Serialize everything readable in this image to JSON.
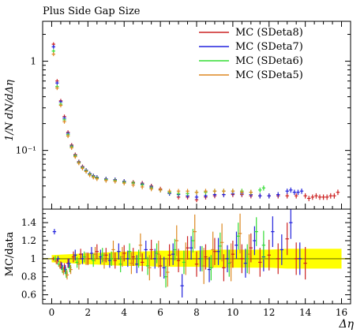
{
  "chart_data": [
    {
      "type": "line",
      "title": "Plus Side Gap Size",
      "xlabel": "Δη",
      "ylabel": "1/N dN/dΔη",
      "yscale": "log",
      "ylim": [
        0.022,
        2.8
      ],
      "xlim": [
        -0.5,
        16.5
      ],
      "y_ticks": [
        {
          "value": 1,
          "label": "1"
        },
        {
          "value": 0.1,
          "label": "10⁻¹"
        }
      ],
      "legend_position": "top-right",
      "series": [
        {
          "name": "MC (SDeta8)",
          "color": "#cc2222",
          "x": [
            0.1,
            0.3,
            0.5,
            0.7,
            0.9,
            1.1,
            1.3,
            1.5,
            1.7,
            1.9,
            2.1,
            2.3,
            2.5,
            3.0,
            3.5,
            4.0,
            4.5,
            5.0,
            5.5,
            6.0,
            6.5,
            7.0,
            7.5,
            8.0,
            8.5,
            9.0,
            9.5,
            10.0,
            10.5,
            11.0,
            11.5,
            12.0,
            12.5,
            13.0,
            13.5,
            14.0,
            14.2,
            14.4,
            14.6,
            14.8,
            15.0,
            15.2,
            15.4,
            15.6,
            15.8
          ],
          "y": [
            1.55,
            0.6,
            0.36,
            0.24,
            0.16,
            0.115,
            0.09,
            0.075,
            0.066,
            0.06,
            0.055,
            0.052,
            0.05,
            0.048,
            0.047,
            0.045,
            0.044,
            0.043,
            0.04,
            0.037,
            0.033,
            0.03,
            0.03,
            0.028,
            0.03,
            0.031,
            0.032,
            0.032,
            0.032,
            0.031,
            0.031,
            0.031,
            0.031,
            0.031,
            0.031,
            0.031,
            0.029,
            0.03,
            0.031,
            0.03,
            0.03,
            0.03,
            0.031,
            0.031,
            0.034
          ]
        },
        {
          "name": "MC (SDeta7)",
          "color": "#2222dd",
          "x": [
            0.1,
            0.3,
            0.5,
            0.7,
            0.9,
            1.1,
            1.3,
            1.5,
            1.7,
            1.9,
            2.1,
            2.3,
            2.5,
            3.0,
            3.5,
            4.0,
            4.5,
            5.0,
            5.5,
            6.0,
            6.5,
            7.0,
            7.5,
            8.0,
            8.5,
            9.0,
            9.5,
            10.0,
            10.5,
            11.0,
            11.5,
            12.0,
            12.5,
            13.0,
            13.2,
            13.4,
            13.6,
            13.8
          ],
          "y": [
            1.45,
            0.57,
            0.35,
            0.23,
            0.155,
            0.112,
            0.088,
            0.074,
            0.065,
            0.06,
            0.055,
            0.052,
            0.05,
            0.048,
            0.047,
            0.045,
            0.043,
            0.042,
            0.039,
            0.036,
            0.033,
            0.032,
            0.031,
            0.03,
            0.031,
            0.032,
            0.032,
            0.033,
            0.033,
            0.032,
            0.031,
            0.031,
            0.032,
            0.035,
            0.036,
            0.034,
            0.034,
            0.035
          ]
        },
        {
          "name": "MC (SDeta6)",
          "color": "#33dd33",
          "x": [
            0.1,
            0.3,
            0.5,
            0.7,
            0.9,
            1.1,
            1.3,
            1.5,
            1.7,
            1.9,
            2.1,
            2.3,
            2.5,
            3.0,
            3.5,
            4.0,
            4.5,
            5.0,
            5.5,
            6.0,
            6.5,
            7.0,
            7.5,
            8.0,
            8.5,
            9.0,
            9.5,
            10.0,
            10.5,
            11.0,
            11.5,
            11.7
          ],
          "y": [
            1.3,
            0.52,
            0.33,
            0.22,
            0.15,
            0.11,
            0.087,
            0.073,
            0.064,
            0.059,
            0.054,
            0.051,
            0.049,
            0.047,
            0.046,
            0.044,
            0.043,
            0.041,
            0.038,
            0.036,
            0.034,
            0.033,
            0.033,
            0.034,
            0.034,
            0.035,
            0.035,
            0.035,
            0.035,
            0.034,
            0.036,
            0.038
          ]
        },
        {
          "name": "MC (SDeta5)",
          "color": "#dd8822",
          "x": [
            0.1,
            0.3,
            0.5,
            0.7,
            0.9,
            1.1,
            1.3,
            1.5,
            1.7,
            1.9,
            2.1,
            2.3,
            2.5,
            3.0,
            3.5,
            4.0,
            4.5,
            5.0,
            5.5,
            6.0,
            6.5,
            7.0,
            7.5,
            8.0,
            8.5,
            9.0,
            9.5,
            10.0,
            10.5,
            11.0
          ],
          "y": [
            1.2,
            0.5,
            0.32,
            0.21,
            0.145,
            0.107,
            0.085,
            0.072,
            0.063,
            0.058,
            0.053,
            0.05,
            0.048,
            0.046,
            0.045,
            0.043,
            0.041,
            0.039,
            0.037,
            0.036,
            0.035,
            0.035,
            0.035,
            0.034,
            0.035,
            0.035,
            0.035,
            0.035,
            0.034,
            0.034
          ]
        }
      ]
    },
    {
      "type": "scatter",
      "ylabel": "MC/data",
      "xlabel": "Δη",
      "xlim": [
        -0.5,
        16.5
      ],
      "ylim": [
        0.5,
        1.55
      ],
      "x_ticks": [
        {
          "value": 0,
          "label": "0"
        },
        {
          "value": 2,
          "label": "2"
        },
        {
          "value": 4,
          "label": "4"
        },
        {
          "value": 6,
          "label": "6"
        },
        {
          "value": 8,
          "label": "8"
        },
        {
          "value": 10,
          "label": "10"
        },
        {
          "value": 12,
          "label": "12"
        },
        {
          "value": 14,
          "label": "14"
        },
        {
          "value": 16,
          "label": "16"
        }
      ],
      "y_ticks": [
        {
          "value": 0.6,
          "label": "0.6"
        },
        {
          "value": 0.8,
          "label": "0.8"
        },
        {
          "value": 1,
          "label": "1"
        },
        {
          "value": 1.2,
          "label": "1.2"
        },
        {
          "value": 1.4,
          "label": "1.4"
        }
      ],
      "reference_line": 1,
      "band_color": "#ffff00",
      "line_color": "#999900",
      "band": {
        "x": [
          0,
          1,
          2,
          3,
          4,
          5,
          6,
          7,
          8,
          9,
          10,
          11,
          12,
          13,
          14,
          15,
          16
        ],
        "lo": [
          0.96,
          0.95,
          0.94,
          0.93,
          0.92,
          0.92,
          0.91,
          0.91,
          0.91,
          0.9,
          0.9,
          0.9,
          0.9,
          0.89,
          0.89,
          0.89,
          0.89
        ],
        "hi": [
          1.04,
          1.05,
          1.06,
          1.07,
          1.08,
          1.08,
          1.09,
          1.09,
          1.09,
          1.1,
          1.1,
          1.1,
          1.1,
          1.11,
          1.11,
          1.11,
          1.11
        ]
      },
      "series": [
        {
          "name": "MC (SDeta8)",
          "color": "#cc2222",
          "x": [
            0.1,
            0.3,
            0.5,
            0.7,
            0.9,
            1.2,
            1.6,
            2.0,
            2.5,
            3.0,
            3.5,
            4.0,
            4.5,
            5.0,
            5.5,
            6.0,
            6.5,
            7.0,
            7.5,
            8.0,
            8.5,
            9.0,
            9.5,
            10.0,
            10.5,
            11.0,
            11.5,
            12.0,
            12.5,
            13.0,
            13.5,
            14.0
          ],
          "y": [
            1.0,
            0.97,
            0.93,
            0.9,
            0.95,
            1.02,
            1.05,
            1.0,
            1.08,
            1.04,
            0.98,
            1.06,
            1.02,
            0.96,
            1.1,
            0.92,
            1.04,
            0.98,
            1.12,
            0.94,
            1.02,
            1.08,
            0.9,
            1.05,
            1.0,
            1.12,
            0.96,
            1.04,
            1.0,
            1.22,
            1.0,
            0.95
          ],
          "err": [
            0.02,
            0.03,
            0.04,
            0.05,
            0.05,
            0.06,
            0.06,
            0.07,
            0.08,
            0.08,
            0.09,
            0.09,
            0.1,
            0.1,
            0.11,
            0.12,
            0.12,
            0.13,
            0.13,
            0.14,
            0.14,
            0.15,
            0.15,
            0.15,
            0.16,
            0.16,
            0.16,
            0.17,
            0.17,
            0.18,
            0.18,
            0.18
          ]
        },
        {
          "name": "MC (SDeta7)",
          "color": "#2222dd",
          "x": [
            0.15,
            0.35,
            0.55,
            0.75,
            0.95,
            1.3,
            1.7,
            2.2,
            2.7,
            3.2,
            3.7,
            4.2,
            4.7,
            5.2,
            5.7,
            6.2,
            6.7,
            7.2,
            7.7,
            8.2,
            8.7,
            9.2,
            9.7,
            10.2,
            10.7,
            11.2,
            11.7,
            12.2,
            12.7,
            13.2,
            13.7
          ],
          "y": [
            1.3,
            1.0,
            0.92,
            0.88,
            0.95,
            1.04,
            1.0,
            1.06,
            1.02,
            0.98,
            1.08,
            1.0,
            0.94,
            1.1,
            1.0,
            0.9,
            1.05,
            0.7,
            1.12,
            1.0,
            0.88,
            1.08,
            1.0,
            1.15,
            0.95,
            1.2,
            1.02,
            1.3,
            1.1,
            1.4,
            1.0
          ],
          "err": [
            0.03,
            0.03,
            0.04,
            0.05,
            0.05,
            0.06,
            0.06,
            0.07,
            0.08,
            0.08,
            0.09,
            0.09,
            0.1,
            0.1,
            0.11,
            0.12,
            0.12,
            0.13,
            0.13,
            0.14,
            0.14,
            0.15,
            0.15,
            0.15,
            0.16,
            0.16,
            0.16,
            0.17,
            0.17,
            0.18,
            0.18
          ]
        },
        {
          "name": "MC (SDeta6)",
          "color": "#33dd33",
          "x": [
            0.2,
            0.4,
            0.6,
            0.8,
            1.0,
            1.4,
            1.8,
            2.3,
            2.8,
            3.3,
            3.8,
            4.3,
            4.8,
            5.3,
            5.8,
            6.3,
            6.8,
            7.3,
            7.8,
            8.3,
            8.8,
            9.3,
            9.8,
            10.3,
            10.8,
            11.3,
            11.7
          ],
          "y": [
            1.0,
            0.94,
            0.88,
            0.84,
            0.9,
            0.96,
            1.02,
            0.98,
            1.04,
            1.0,
            0.94,
            1.08,
            1.0,
            0.92,
            1.06,
            0.8,
            1.1,
            0.96,
            1.2,
            1.0,
            0.9,
            1.14,
            0.95,
            1.25,
            1.0,
            1.3,
            1.15
          ],
          "err": [
            0.03,
            0.03,
            0.04,
            0.05,
            0.05,
            0.06,
            0.06,
            0.07,
            0.08,
            0.08,
            0.09,
            0.09,
            0.1,
            0.1,
            0.11,
            0.12,
            0.12,
            0.13,
            0.13,
            0.14,
            0.14,
            0.15,
            0.15,
            0.15,
            0.16,
            0.16,
            0.16
          ]
        },
        {
          "name": "MC (SDeta5)",
          "color": "#dd8822",
          "x": [
            0.25,
            0.45,
            0.65,
            0.85,
            1.05,
            1.5,
            1.9,
            2.4,
            2.9,
            3.4,
            3.9,
            4.4,
            4.9,
            5.4,
            5.9,
            6.4,
            6.9,
            7.4,
            7.9,
            8.4,
            8.9,
            9.4,
            9.9,
            10.4,
            10.9
          ],
          "y": [
            0.97,
            0.92,
            0.86,
            0.82,
            0.88,
            0.94,
            1.0,
            1.05,
            0.98,
            1.1,
            1.02,
            0.95,
            1.15,
            0.9,
            1.05,
            0.85,
            1.2,
            1.0,
            1.3,
            0.92,
            1.1,
            1.18,
            0.96,
            1.28,
            1.05
          ],
          "err": [
            0.03,
            0.03,
            0.04,
            0.05,
            0.05,
            0.06,
            0.07,
            0.08,
            0.09,
            0.1,
            0.11,
            0.12,
            0.13,
            0.14,
            0.15,
            0.16,
            0.17,
            0.18,
            0.19,
            0.2,
            0.2,
            0.21,
            0.21,
            0.22,
            0.22
          ]
        }
      ]
    }
  ]
}
